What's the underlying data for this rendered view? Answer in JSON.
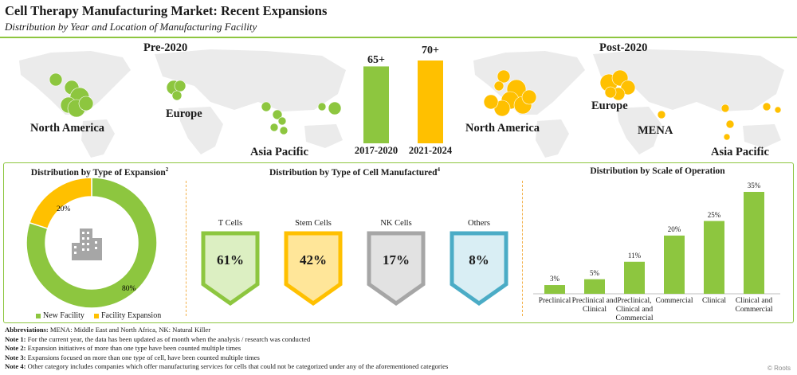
{
  "header": {
    "title": "Cell Therapy Manufacturing Market: Recent Expansions",
    "subtitle": "Distribution by Year and Location of Manufacturing Facility"
  },
  "colors": {
    "green": "#8dc63f",
    "yellow": "#ffc000",
    "map": "#e9e9e9",
    "gray": "#a6a6a6",
    "blue": "#4bacc6"
  },
  "top": {
    "pre_title": "Pre-2020",
    "post_title": "Post-2020",
    "pre_regions": [
      "North America",
      "Europe",
      "Asia Pacific"
    ],
    "post_regions": [
      "North America",
      "Europe",
      "MENA",
      "Asia Pacific"
    ]
  },
  "chart_data": [
    {
      "type": "bar",
      "categories": [
        "2017-2020",
        "2021-2024"
      ],
      "values": [
        65,
        70
      ],
      "data_labels": [
        "65+",
        "70+"
      ]
    },
    {
      "type": "pie",
      "title": "Distribution by Type of Expansion",
      "title_superscript": "2",
      "slices": [
        {
          "name": "New Facility",
          "value": 80,
          "label": "80%"
        },
        {
          "name": "Facility Expansion",
          "value": 20,
          "label": "20%"
        }
      ]
    },
    {
      "type": "table",
      "title": "Distribution by Type of Cell Manufactured",
      "title_superscript": "4",
      "items": [
        {
          "name": "T Cells",
          "value": "61%"
        },
        {
          "name": "Stem Cells",
          "value": "42%"
        },
        {
          "name": "NK Cells",
          "value": "17%"
        },
        {
          "name": "Others",
          "value": "8%"
        }
      ]
    },
    {
      "type": "bar",
      "title": "Distribution by Scale of Operation",
      "categories": [
        "Preclinical",
        "Preclinical and Clinical",
        "Preclinical, Clinical and Commercial",
        "Commercial",
        "Clinical",
        "Clinical and Commercial"
      ],
      "values": [
        3,
        5,
        11,
        20,
        25,
        35
      ],
      "data_labels": [
        "3%",
        "5%",
        "11%",
        "20%",
        "25%",
        "35%"
      ],
      "ylim": [
        0,
        35
      ]
    }
  ],
  "notes": [
    {
      "key": "Abbreviations:",
      "text": " MENA: Middle East and North Africa, NK: Natural Killer"
    },
    {
      "key": "Note 1:",
      "text": " For the current year, the data has been updated as of month when the analysis / research was conducted"
    },
    {
      "key": "Note 2:",
      "text": " Expansion initiatives of more than one type have been counted multiple times"
    },
    {
      "key": "Note 3:",
      "text": " Expansions focused on more than one type of cell, have been counted multiple times"
    },
    {
      "key": "Note 4:",
      "text": " Other category includes companies which offer manufacturing services for cells that could not be categorized under any of the aforementioned categories"
    }
  ],
  "credit": "© Roots"
}
